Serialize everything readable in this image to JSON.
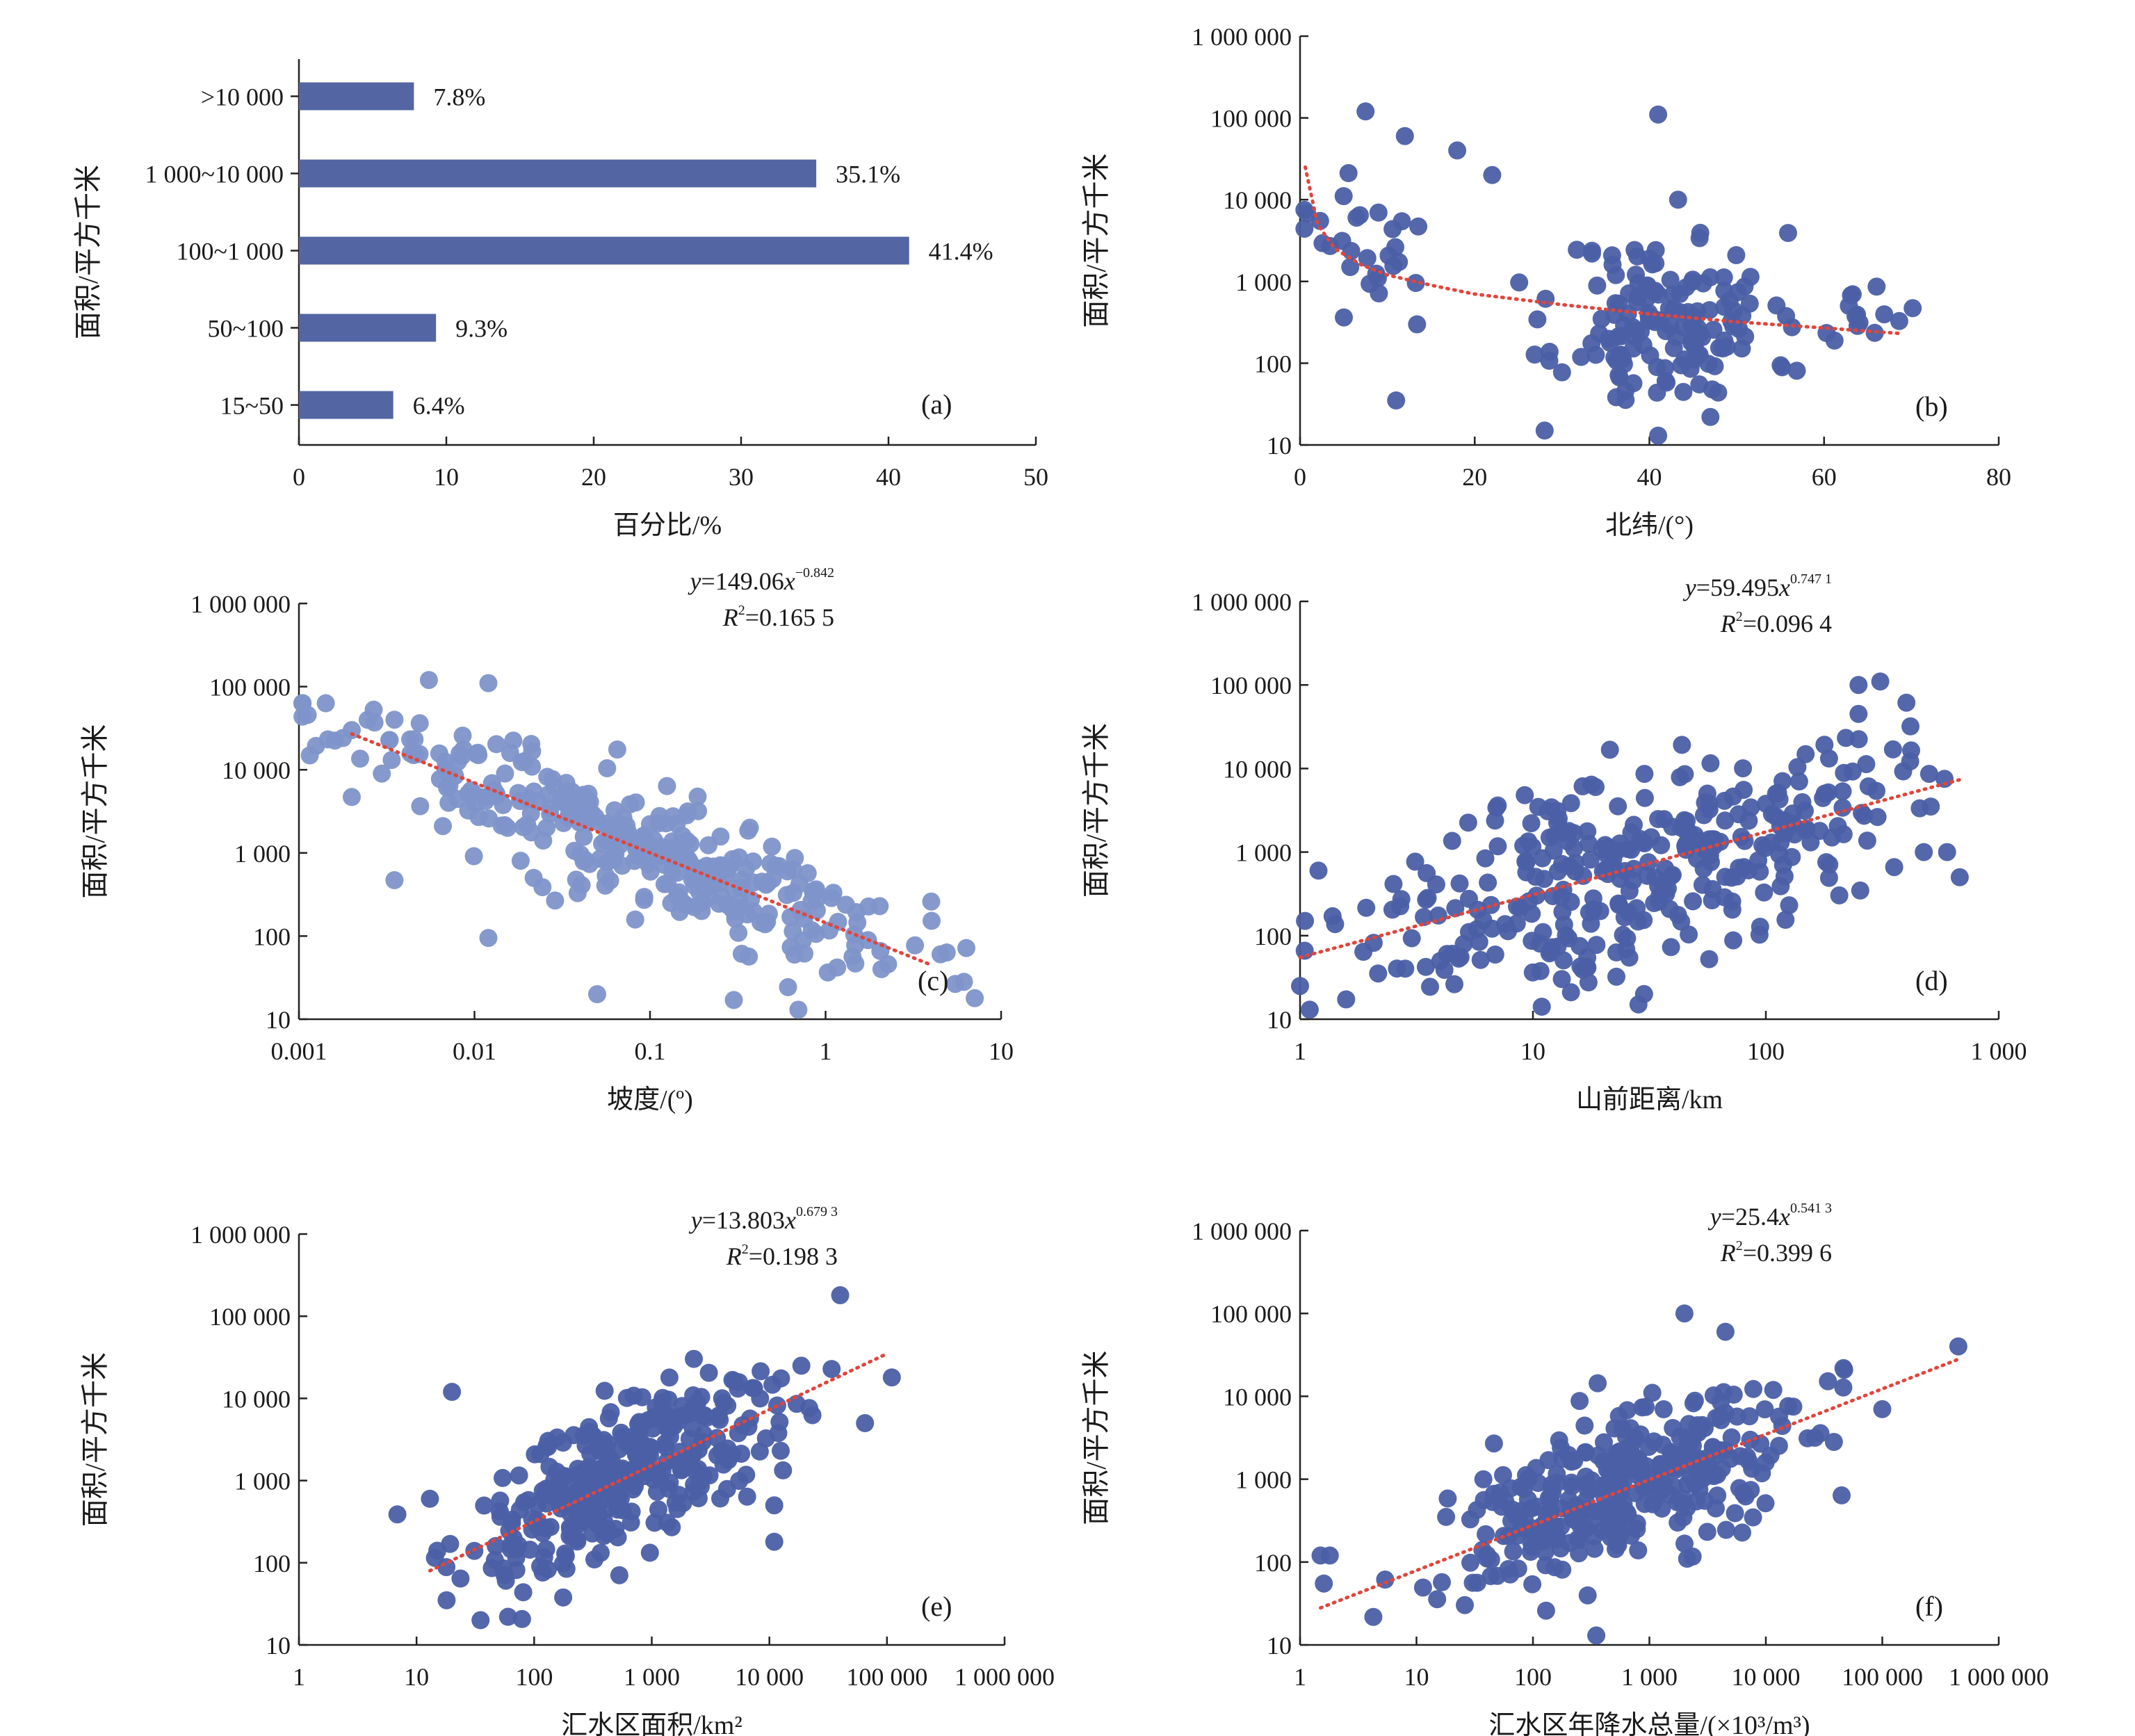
{
  "colors": {
    "bar": "#5366a3",
    "dot_dark": "#4b5fa6",
    "dot_light": "#7e94c9",
    "trend": "#e0453c",
    "axis": "#222222"
  },
  "chart_data": [
    {
      "id": "a",
      "type": "bar",
      "panel_label": "(a)",
      "categories": [
        ">10 000",
        "1 000~10 000",
        "100~1 000",
        "50~100",
        "15~50"
      ],
      "values": [
        7.8,
        35.1,
        41.4,
        9.3,
        6.4
      ],
      "value_labels": [
        "7.8%",
        "35.1%",
        "41.4%",
        "9.3%",
        "6.4%"
      ],
      "xlabel": "百分比/%",
      "ylabel": "面积/平方千米",
      "xlim": [
        0,
        50
      ],
      "xticks": [
        0,
        10,
        20,
        30,
        40,
        50
      ],
      "xtick_labels": [
        "0",
        "10",
        "20",
        "30",
        "40",
        "50"
      ]
    },
    {
      "id": "b",
      "type": "scatter",
      "panel_label": "(b)",
      "xlabel": "北纬/(°)",
      "ylabel": "面积/平方千米",
      "xscale": "linear",
      "yscale": "log",
      "xlim": [
        0,
        80
      ],
      "ylim": [
        10,
        1000000
      ],
      "xticks": [
        0,
        20,
        40,
        60,
        80
      ],
      "xtick_labels": [
        "0",
        "20",
        "40",
        "60",
        "80"
      ],
      "yticks": [
        10,
        100,
        1000,
        10000,
        100000,
        1000000
      ],
      "ytick_labels": [
        "10",
        "100",
        "1 000",
        "10 000",
        "100 000",
        "1 000 000"
      ],
      "trend": {
        "style": "dotted",
        "x": [
          0.6,
          2,
          4,
          7,
          10,
          15,
          20,
          30,
          40,
          50,
          60,
          69
        ],
        "y": [
          25000,
          5000,
          2500,
          1600,
          1200,
          900,
          700,
          520,
          400,
          320,
          270,
          230
        ]
      },
      "clusters": [
        {
          "xc": 42,
          "yc": 2.5,
          "sx": 6,
          "sy": 0.55,
          "n": 150
        },
        {
          "xc": 8,
          "yc": 3.4,
          "sx": 5,
          "sy": 0.5,
          "n": 28
        },
        {
          "xc": 65,
          "yc": 2.7,
          "sx": 3,
          "sy": 0.2,
          "n": 14
        }
      ],
      "points": [
        [
          7.5,
          120000
        ],
        [
          41,
          110000
        ],
        [
          12,
          60000
        ],
        [
          18,
          40000
        ],
        [
          22,
          20000
        ],
        [
          11,
          35
        ],
        [
          41,
          13
        ],
        [
          0.5,
          7500
        ],
        [
          28,
          15
        ]
      ],
      "seed": 11
    },
    {
      "id": "c",
      "type": "scatter",
      "panel_label": "(c)",
      "light": true,
      "xlabel": "坡度/(º)",
      "ylabel": "面积/平方千米",
      "equation": {
        "coef": "149.06",
        "exponent": "−0.842",
        "r2": "0.165 5"
      },
      "xscale": "log",
      "yscale": "log",
      "xlim": [
        0.001,
        10
      ],
      "ylim": [
        10,
        1000000
      ],
      "xticks": [
        0.001,
        0.01,
        0.1,
        1,
        10
      ],
      "xtick_labels": [
        "0.001",
        "0.01",
        "0.1",
        "1",
        "10"
      ],
      "yticks": [
        10,
        100,
        1000,
        10000,
        100000,
        1000000
      ],
      "ytick_labels": [
        "10",
        "100",
        "1 000",
        "10 000",
        "100 000",
        "1 000 000"
      ],
      "trend": {
        "style": "dotted",
        "x": [
          0.002,
          4
        ],
        "y": [
          27000,
          45
        ]
      },
      "clusters": [
        {
          "xc": -1.15,
          "yc": 2.9,
          "sx": 0.8,
          "sy": 0.35,
          "n": 330,
          "slope": -0.84,
          "icpt": 2.17
        }
      ],
      "points": [
        [
          0.0055,
          120000
        ],
        [
          0.012,
          110000
        ],
        [
          0.002,
          30000
        ],
        [
          0.0035,
          40000
        ],
        [
          0.0045,
          15000
        ],
        [
          0.002,
          4700
        ],
        [
          0.0035,
          470
        ],
        [
          0.012,
          95
        ],
        [
          0.05,
          20
        ],
        [
          4,
          260
        ],
        [
          0.7,
          13
        ],
        [
          0.3,
          17
        ]
      ],
      "seed": 23
    },
    {
      "id": "d",
      "type": "scatter",
      "panel_label": "(d)",
      "xlabel": "山前距离/km",
      "ylabel": "面积/平方千米",
      "equation": {
        "coef": "59.495",
        "exponent": "0.747 1",
        "r2": "0.096 4"
      },
      "xscale": "log",
      "yscale": "log",
      "xlim": [
        1,
        1000
      ],
      "ylim": [
        10,
        1000000
      ],
      "xticks": [
        1,
        10,
        100,
        1000
      ],
      "xtick_labels": [
        "1",
        "10",
        "100",
        "1 000"
      ],
      "yticks": [
        10,
        100,
        1000,
        10000,
        100000,
        1000000
      ],
      "ytick_labels": [
        "10",
        "100",
        "1 000",
        "10 000",
        "100 000",
        "1 000 000"
      ],
      "trend": {
        "style": "dotted",
        "x": [
          1,
          700
        ],
        "y": [
          55,
          7500
        ]
      },
      "clusters": [
        {
          "xc": 1.45,
          "yc": 2.8,
          "sx": 0.55,
          "sy": 0.6,
          "n": 330,
          "slope": 0.75,
          "icpt": 1.77
        }
      ],
      "points": [
        [
          1,
          25
        ],
        [
          1.1,
          13
        ],
        [
          1.05,
          150
        ],
        [
          1.2,
          600
        ],
        [
          250,
          100000
        ],
        [
          310,
          110000
        ],
        [
          250,
          45000
        ],
        [
          680,
          500
        ],
        [
          600,
          1000
        ],
        [
          30,
          20
        ]
      ],
      "seed": 37
    },
    {
      "id": "e",
      "type": "scatter",
      "panel_label": "(e)",
      "xlabel": "汇水区面积/km²",
      "ylabel": "面积/平方千米",
      "equation": {
        "coef": "13.803",
        "exponent": "0.679 3",
        "r2": "0.198 3"
      },
      "xscale": "log",
      "yscale": "log",
      "xlim": [
        1,
        1000000
      ],
      "ylim": [
        10,
        1000000
      ],
      "xticks": [
        1,
        10,
        100,
        1000,
        10000,
        100000,
        1000000
      ],
      "xtick_labels": [
        "1",
        "10",
        "100",
        "1 000",
        "10 000",
        "100 000",
        "1 000 000"
      ],
      "yticks": [
        10,
        100,
        1000,
        10000,
        100000,
        1000000
      ],
      "ytick_labels": [
        "10",
        "100",
        "1 000",
        "10 000",
        "100 000",
        "1 000 000"
      ],
      "trend": {
        "style": "dotted",
        "x": [
          13,
          100000
        ],
        "y": [
          80,
          35000
        ]
      },
      "clusters": [
        {
          "xc": 2.8,
          "yc": 3.0,
          "sx": 0.65,
          "sy": 0.45,
          "n": 340,
          "slope": 0.68,
          "icpt": 1.14
        }
      ],
      "points": [
        [
          13,
          600
        ],
        [
          15,
          140
        ],
        [
          18,
          35
        ],
        [
          20,
          12000
        ],
        [
          35,
          20
        ],
        [
          60,
          22
        ],
        [
          40000,
          180000
        ],
        [
          110000,
          18000
        ],
        [
          65000,
          5000
        ],
        [
          11000,
          180
        ],
        [
          11000,
          500
        ]
      ],
      "seed": 51
    },
    {
      "id": "f",
      "type": "scatter",
      "panel_label": "(f)",
      "xlabel": "汇水区年降水总量/(×10³/m³)",
      "ylabel": "面积/平方千米",
      "equation": {
        "coef": "25.4",
        "exponent": "0.541 3",
        "r2": "0.399 6"
      },
      "xscale": "log",
      "yscale": "log",
      "xlim": [
        1,
        1000000
      ],
      "ylim": [
        10,
        1000000
      ],
      "xticks": [
        1,
        10,
        100,
        1000,
        10000,
        100000,
        1000000
      ],
      "xtick_labels": [
        "1",
        "10",
        "100",
        "1 000",
        "10 000",
        "100 000",
        "1 000 000"
      ],
      "yticks": [
        10,
        100,
        1000,
        10000,
        100000,
        1000000
      ],
      "ytick_labels": [
        "10",
        "100",
        "1 000",
        "10 000",
        "100 000",
        "1 000 000"
      ],
      "trend": {
        "style": "dotted",
        "x": [
          1.5,
          450000
        ],
        "y": [
          28,
          28000
        ]
      },
      "clusters": [
        {
          "xc": 2.85,
          "yc": 3.0,
          "sx": 0.75,
          "sy": 0.45,
          "n": 340,
          "slope": 0.54,
          "icpt": 1.4
        }
      ],
      "points": [
        [
          1.5,
          120
        ],
        [
          1.6,
          55
        ],
        [
          1.8000000000000003,
          120
        ],
        [
          450000,
          40000
        ],
        [
          100000,
          7000
        ],
        [
          2000,
          100000
        ],
        [
          4500,
          60000
        ],
        [
          350,
          13
        ]
      ],
      "seed": 73
    }
  ]
}
